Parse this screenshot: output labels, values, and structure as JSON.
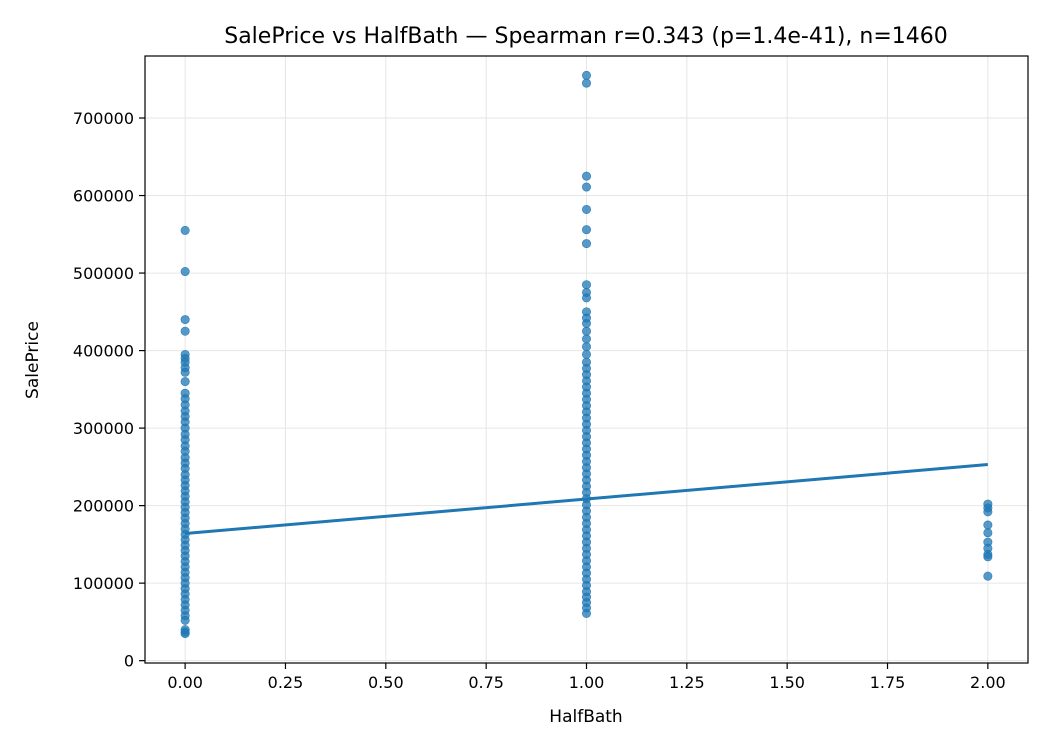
{
  "chart_data": {
    "type": "scatter",
    "title": "SalePrice vs HalfBath — Spearman r=0.343 (p=1.4e-41), n=1460",
    "xlabel": "HalfBath",
    "ylabel": "SalePrice",
    "xlim": [
      -0.1,
      2.1
    ],
    "ylim": [
      -3000,
      780000
    ],
    "xticks": [
      0.0,
      0.25,
      0.5,
      0.75,
      1.0,
      1.25,
      1.5,
      1.75,
      2.0
    ],
    "xtick_labels": [
      "0.00",
      "0.25",
      "0.50",
      "0.75",
      "1.00",
      "1.25",
      "1.50",
      "1.75",
      "2.00"
    ],
    "yticks": [
      0,
      100000,
      200000,
      300000,
      400000,
      500000,
      600000,
      700000
    ],
    "ytick_labels": [
      "0",
      "100000",
      "200000",
      "300000",
      "400000",
      "500000",
      "600000",
      "700000"
    ],
    "grid": true,
    "series_color": "#1f77b4",
    "points": [
      {
        "x": 0,
        "y": 555000
      },
      {
        "x": 0,
        "y": 502000
      },
      {
        "x": 0,
        "y": 440000
      },
      {
        "x": 0,
        "y": 425000
      },
      {
        "x": 0,
        "y": 395000
      },
      {
        "x": 0,
        "y": 390000
      },
      {
        "x": 0,
        "y": 385000
      },
      {
        "x": 0,
        "y": 378000
      },
      {
        "x": 0,
        "y": 372000
      },
      {
        "x": 0,
        "y": 360000
      },
      {
        "x": 0,
        "y": 345000
      },
      {
        "x": 0,
        "y": 338000
      },
      {
        "x": 0,
        "y": 330000
      },
      {
        "x": 0,
        "y": 322000
      },
      {
        "x": 0,
        "y": 315000
      },
      {
        "x": 0,
        "y": 308000
      },
      {
        "x": 0,
        "y": 300000
      },
      {
        "x": 0,
        "y": 292000
      },
      {
        "x": 0,
        "y": 285000
      },
      {
        "x": 0,
        "y": 277000
      },
      {
        "x": 0,
        "y": 270000
      },
      {
        "x": 0,
        "y": 262000
      },
      {
        "x": 0,
        "y": 255000
      },
      {
        "x": 0,
        "y": 248000
      },
      {
        "x": 0,
        "y": 240000
      },
      {
        "x": 0,
        "y": 233000
      },
      {
        "x": 0,
        "y": 226000
      },
      {
        "x": 0,
        "y": 219000
      },
      {
        "x": 0,
        "y": 212000
      },
      {
        "x": 0,
        "y": 205000
      },
      {
        "x": 0,
        "y": 198000
      },
      {
        "x": 0,
        "y": 191000
      },
      {
        "x": 0,
        "y": 184000
      },
      {
        "x": 0,
        "y": 177000
      },
      {
        "x": 0,
        "y": 170000
      },
      {
        "x": 0,
        "y": 163000
      },
      {
        "x": 0,
        "y": 156000
      },
      {
        "x": 0,
        "y": 149000
      },
      {
        "x": 0,
        "y": 142000
      },
      {
        "x": 0,
        "y": 135000
      },
      {
        "x": 0,
        "y": 128000
      },
      {
        "x": 0,
        "y": 121000
      },
      {
        "x": 0,
        "y": 114000
      },
      {
        "x": 0,
        "y": 107000
      },
      {
        "x": 0,
        "y": 100000
      },
      {
        "x": 0,
        "y": 93000
      },
      {
        "x": 0,
        "y": 86000
      },
      {
        "x": 0,
        "y": 79000
      },
      {
        "x": 0,
        "y": 72000
      },
      {
        "x": 0,
        "y": 65000
      },
      {
        "x": 0,
        "y": 58000
      },
      {
        "x": 0,
        "y": 52000
      },
      {
        "x": 0,
        "y": 40000
      },
      {
        "x": 0,
        "y": 37000
      },
      {
        "x": 0,
        "y": 34900
      },
      {
        "x": 1,
        "y": 755000
      },
      {
        "x": 1,
        "y": 745000
      },
      {
        "x": 1,
        "y": 625000
      },
      {
        "x": 1,
        "y": 611000
      },
      {
        "x": 1,
        "y": 582000
      },
      {
        "x": 1,
        "y": 556000
      },
      {
        "x": 1,
        "y": 538000
      },
      {
        "x": 1,
        "y": 485000
      },
      {
        "x": 1,
        "y": 475000
      },
      {
        "x": 1,
        "y": 468000
      },
      {
        "x": 1,
        "y": 450000
      },
      {
        "x": 1,
        "y": 442000
      },
      {
        "x": 1,
        "y": 435000
      },
      {
        "x": 1,
        "y": 425000
      },
      {
        "x": 1,
        "y": 415000
      },
      {
        "x": 1,
        "y": 405000
      },
      {
        "x": 1,
        "y": 395000
      },
      {
        "x": 1,
        "y": 385000
      },
      {
        "x": 1,
        "y": 377000
      },
      {
        "x": 1,
        "y": 369000
      },
      {
        "x": 1,
        "y": 361000
      },
      {
        "x": 1,
        "y": 353000
      },
      {
        "x": 1,
        "y": 345000
      },
      {
        "x": 1,
        "y": 337000
      },
      {
        "x": 1,
        "y": 329000
      },
      {
        "x": 1,
        "y": 321000
      },
      {
        "x": 1,
        "y": 313000
      },
      {
        "x": 1,
        "y": 305000
      },
      {
        "x": 1,
        "y": 297000
      },
      {
        "x": 1,
        "y": 289000
      },
      {
        "x": 1,
        "y": 281000
      },
      {
        "x": 1,
        "y": 273000
      },
      {
        "x": 1,
        "y": 265000
      },
      {
        "x": 1,
        "y": 257000
      },
      {
        "x": 1,
        "y": 249000
      },
      {
        "x": 1,
        "y": 241000
      },
      {
        "x": 1,
        "y": 233000
      },
      {
        "x": 1,
        "y": 225000
      },
      {
        "x": 1,
        "y": 217000
      },
      {
        "x": 1,
        "y": 209000
      },
      {
        "x": 1,
        "y": 201000
      },
      {
        "x": 1,
        "y": 193000
      },
      {
        "x": 1,
        "y": 185000
      },
      {
        "x": 1,
        "y": 177000
      },
      {
        "x": 1,
        "y": 169000
      },
      {
        "x": 1,
        "y": 161000
      },
      {
        "x": 1,
        "y": 153000
      },
      {
        "x": 1,
        "y": 145000
      },
      {
        "x": 1,
        "y": 137000
      },
      {
        "x": 1,
        "y": 129000
      },
      {
        "x": 1,
        "y": 121000
      },
      {
        "x": 1,
        "y": 113000
      },
      {
        "x": 1,
        "y": 105000
      },
      {
        "x": 1,
        "y": 97000
      },
      {
        "x": 1,
        "y": 89000
      },
      {
        "x": 1,
        "y": 82000
      },
      {
        "x": 1,
        "y": 75000
      },
      {
        "x": 1,
        "y": 68000
      },
      {
        "x": 1,
        "y": 61000
      },
      {
        "x": 2,
        "y": 202000
      },
      {
        "x": 2,
        "y": 197000
      },
      {
        "x": 2,
        "y": 192000
      },
      {
        "x": 2,
        "y": 175000
      },
      {
        "x": 2,
        "y": 165000
      },
      {
        "x": 2,
        "y": 153000
      },
      {
        "x": 2,
        "y": 145000
      },
      {
        "x": 2,
        "y": 137000
      },
      {
        "x": 2,
        "y": 134000
      },
      {
        "x": 2,
        "y": 109000
      }
    ],
    "fit_line": {
      "x": [
        0,
        2
      ],
      "y": [
        164000,
        253000
      ]
    }
  }
}
